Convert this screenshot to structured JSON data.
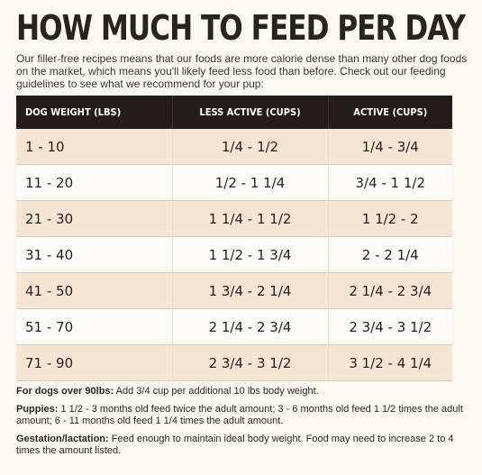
{
  "title": "HOW MUCH TO FEED PER DAY",
  "intro": "Our filler-free recipes means that our foods are more calorie dense than many other dog foods on the market, which means you'll likely feed less food than before. Check out our feeding guidelines to see what we recommend for your pup:",
  "table": {
    "headers": [
      "DOG WEIGHT (LBS)",
      "LESS ACTIVE (CUPS)",
      "ACTIVE (CUPS)"
    ],
    "rows": [
      {
        "weight": "1 - 10",
        "less_active": "1/4 - 1/2",
        "active": "1/4 - 3/4"
      },
      {
        "weight": "11 - 20",
        "less_active": "1/2 - 1 1/4",
        "active": "3/4 - 1 1/2"
      },
      {
        "weight": "21 - 30",
        "less_active": "1 1/4 - 1 1/2",
        "active": "1 1/2 - 2"
      },
      {
        "weight": "31 - 40",
        "less_active": "1 1/2 - 1 3/4",
        "active": "2 - 2 1/4"
      },
      {
        "weight": "41 - 50",
        "less_active": "1 3/4 - 2 1/4",
        "active": "2 1/4 - 2 3/4"
      },
      {
        "weight": "51 - 70",
        "less_active": "2 1/4 - 2 3/4",
        "active": "2 3/4 - 3 1/2"
      },
      {
        "weight": "71 - 90",
        "less_active": "2 3/4 - 3 1/2",
        "active": "3 1/2 - 4 1/4"
      }
    ]
  },
  "notes": [
    {
      "label": "For dogs over 90lbs:",
      "text": " Add 3/4 cup per additional 10 lbs body weight."
    },
    {
      "label": "Puppies:",
      "text": " 1 1/2 - 3 months old feed twice the adult amount; 3 - 6 months old feed 1 1/2 times the adult amount; 6 - 11 months old feed 1 1/4 times the adult amount."
    },
    {
      "label": "Gestation/lactation:",
      "text": " Feed enough to maintain ideal body weight. Food may need to increase 2 to 4 times the amount listed."
    }
  ],
  "colors": {
    "header_bg": "#221d1b",
    "odd_row_bg": "#f6e5d3",
    "even_row_bg": "#fdfbf7",
    "page_bg": "#fcf9f2"
  }
}
